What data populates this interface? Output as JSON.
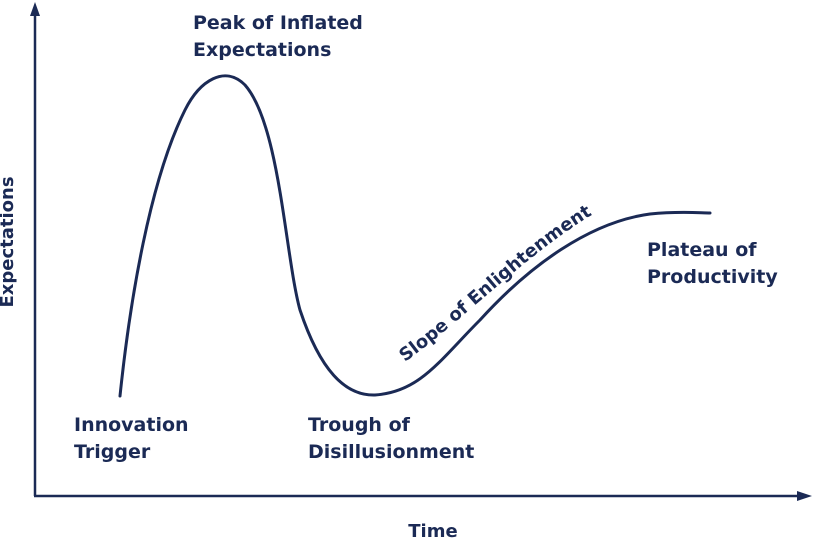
{
  "axes": {
    "y_label": "Expectations",
    "x_label": "Time"
  },
  "phases": {
    "innovation_trigger": {
      "line1": "Innovation",
      "line2": "Trigger"
    },
    "peak": {
      "line1": "Peak of Inflated",
      "line2": "Expectations"
    },
    "trough": {
      "line1": "Trough of",
      "line2": "Disillusionment"
    },
    "slope": {
      "text": "Slope of Enlightenment"
    },
    "plateau": {
      "line1": "Plateau of",
      "line2": "Productivity"
    }
  },
  "colors": {
    "ink": "#1b2a55",
    "background": "#ffffff"
  }
}
